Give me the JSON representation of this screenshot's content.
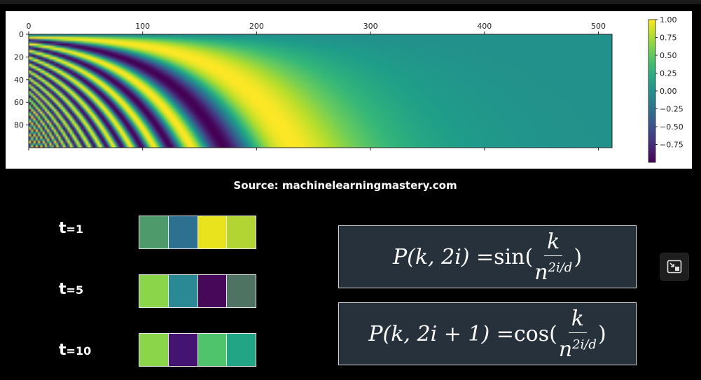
{
  "caption": "Source: machinelearningmastery.com",
  "chart_data": {
    "type": "heatmap",
    "title": "",
    "xlabel": "",
    "ylabel": "",
    "x_ticks": [
      0,
      100,
      200,
      300,
      400,
      500
    ],
    "y_ticks": [
      0,
      20,
      40,
      60,
      80
    ],
    "xlim": [
      0,
      512
    ],
    "ylim": [
      100,
      0
    ],
    "colorbar_ticks": [
      "1.00",
      "0.75",
      "0.50",
      "0.25",
      "0.00",
      "−0.25",
      "−0.50",
      "−0.75"
    ],
    "colorbar_range": [
      -1,
      1
    ],
    "colormap": "viridis",
    "grid": false
  },
  "vectors": [
    {
      "label": "t",
      "suffix": "=1",
      "colors": [
        "#4e9a6a",
        "#2e7090",
        "#e9e31d",
        "#b3d534"
      ]
    },
    {
      "label": "t",
      "suffix": "=5",
      "colors": [
        "#8ad54a",
        "#2a8994",
        "#48085a",
        "#4e7363"
      ]
    },
    {
      "label": "t",
      "suffix": "=10",
      "colors": [
        "#8ad54a",
        "#431470",
        "#4fc46a",
        "#22a584"
      ]
    }
  ],
  "equations": {
    "sin": {
      "lhs": "P(k, 2i) = ",
      "fn": "sin(",
      "num": "k",
      "den": "n",
      "exp": "2i/d",
      "close": ")"
    },
    "cos": {
      "lhs": "P(k, 2i + 1) = ",
      "fn": "cos(",
      "num": "k",
      "den": "n",
      "exp": "2i/d",
      "close": ")"
    }
  },
  "icons": {
    "side_button": "picture-in-picture-icon"
  }
}
